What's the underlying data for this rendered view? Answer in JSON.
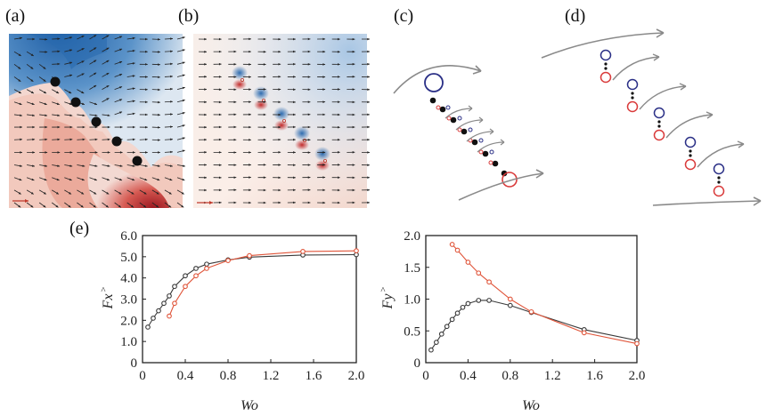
{
  "panels": {
    "a": "(a)",
    "b": "(b)",
    "c": "(c)",
    "d": "(d)",
    "e": "(e)"
  },
  "colors": {
    "series_black": "#3a3a3a",
    "series_red": "#e0553a",
    "vortex_blue": "#2a2f86",
    "vortex_red": "#d93a3a"
  },
  "chart_data": [
    {
      "type": "line",
      "title": "",
      "xlabel": "Wo",
      "ylabel": "Fx",
      "xlim": [
        0,
        2.0
      ],
      "ylim": [
        0,
        6.0
      ],
      "xticks": [
        "0",
        "0.4",
        "0.8",
        "1.2",
        "1.6",
        "2.0"
      ],
      "yticks": [
        "0",
        "1.0",
        "2.0",
        "3.0",
        "4.0",
        "5.0",
        "6.0"
      ],
      "series": [
        {
          "name": "black",
          "color": "#3a3a3a",
          "x": [
            0.05,
            0.1,
            0.15,
            0.2,
            0.25,
            0.3,
            0.4,
            0.5,
            0.6,
            0.8,
            1.0,
            1.5,
            2.0
          ],
          "y": [
            1.68,
            2.1,
            2.45,
            2.8,
            3.15,
            3.6,
            4.1,
            4.45,
            4.65,
            4.85,
            4.98,
            5.08,
            5.1
          ]
        },
        {
          "name": "red",
          "color": "#e0553a",
          "x": [
            0.25,
            0.3,
            0.4,
            0.5,
            0.6,
            0.8,
            1.0,
            1.5,
            2.0
          ],
          "y": [
            2.2,
            2.8,
            3.6,
            4.1,
            4.45,
            4.82,
            5.05,
            5.25,
            5.28
          ]
        }
      ]
    },
    {
      "type": "line",
      "title": "",
      "xlabel": "Wo",
      "ylabel": "Fy",
      "xlim": [
        0,
        2.0
      ],
      "ylim": [
        0,
        2.0
      ],
      "xticks": [
        "0",
        "0.4",
        "0.8",
        "1.2",
        "1.6",
        "2.0"
      ],
      "yticks": [
        "0",
        "0.5",
        "1.0",
        "1.5",
        "2.0"
      ],
      "series": [
        {
          "name": "black",
          "color": "#3a3a3a",
          "x": [
            0.05,
            0.1,
            0.15,
            0.2,
            0.25,
            0.3,
            0.35,
            0.4,
            0.5,
            0.6,
            0.8,
            1.0,
            1.5,
            2.0
          ],
          "y": [
            0.2,
            0.32,
            0.45,
            0.57,
            0.68,
            0.78,
            0.87,
            0.93,
            0.98,
            0.98,
            0.9,
            0.79,
            0.52,
            0.35
          ]
        },
        {
          "name": "red",
          "color": "#e0553a",
          "x": [
            0.25,
            0.3,
            0.4,
            0.5,
            0.6,
            0.8,
            1.0,
            1.5,
            2.0
          ],
          "y": [
            1.86,
            1.77,
            1.58,
            1.41,
            1.27,
            1.0,
            0.8,
            0.47,
            0.3
          ]
        }
      ]
    }
  ]
}
